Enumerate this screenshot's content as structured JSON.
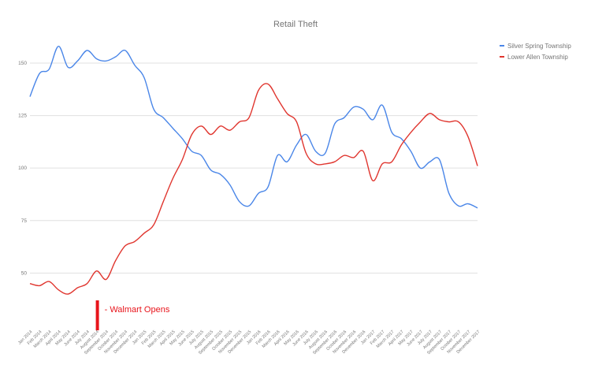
{
  "chart_data": {
    "type": "line",
    "title": "Retail Theft",
    "xlabel": "",
    "ylabel": "",
    "ylim": [
      25,
      162
    ],
    "yticks": [
      50,
      75,
      100,
      125,
      150
    ],
    "grid": true,
    "legend_position": "top-right",
    "categories": [
      "Jan 2014",
      "Feb 2014",
      "March 2014",
      "April 2014",
      "May 2014",
      "June 2014",
      "July 2014",
      "August 2014",
      "September 2014",
      "October 2014",
      "November 2014",
      "December 2014",
      "Jan 2015",
      "Feb 2015",
      "March 2015",
      "April 2015",
      "May 2015",
      "June 2015",
      "July 2015",
      "August 2015",
      "September 2015",
      "October 2015",
      "November 2015",
      "December 2015",
      "Jan 2016",
      "Feb 2016",
      "March 2016",
      "April 2016",
      "May 2016",
      "June 2016",
      "July 2016",
      "August 2016",
      "September 2016",
      "October 2016",
      "November 2016",
      "December 2016",
      "Jan 2017",
      "Feb 2017",
      "March 2017",
      "April 2017",
      "May 2017",
      "June 2017",
      "July 2017",
      "August 2017",
      "September 2017",
      "October 2017",
      "November 2017",
      "December 2017"
    ],
    "series": [
      {
        "name": "Silver Spring Township",
        "color": "#4a86e8",
        "values": [
          134,
          145,
          147,
          158,
          148,
          151,
          156,
          152,
          151,
          153,
          156,
          149,
          143,
          128,
          124,
          119,
          114,
          108,
          106,
          99,
          97,
          92,
          84,
          82,
          88,
          91,
          106,
          103,
          111,
          116,
          108,
          107,
          121,
          124,
          129,
          128,
          123,
          130,
          117,
          114,
          108,
          100,
          103,
          104,
          88,
          82,
          83,
          81
        ]
      },
      {
        "name": "Lower Allen Township",
        "color": "#e0362f",
        "values": [
          45,
          44,
          46,
          42,
          40,
          43,
          45,
          51,
          47,
          56,
          63,
          65,
          69,
          73,
          84,
          95,
          104,
          116,
          120,
          116,
          120,
          118,
          122,
          124,
          137,
          140,
          133,
          126,
          122,
          107,
          102,
          102,
          103,
          106,
          105,
          108,
          94,
          102,
          103,
          111,
          117,
          122,
          126,
          123,
          122,
          122,
          115,
          101
        ]
      }
    ],
    "annotation": {
      "text": "- Walmart Opens",
      "category": "August 2014",
      "color": "#e8141b"
    }
  }
}
